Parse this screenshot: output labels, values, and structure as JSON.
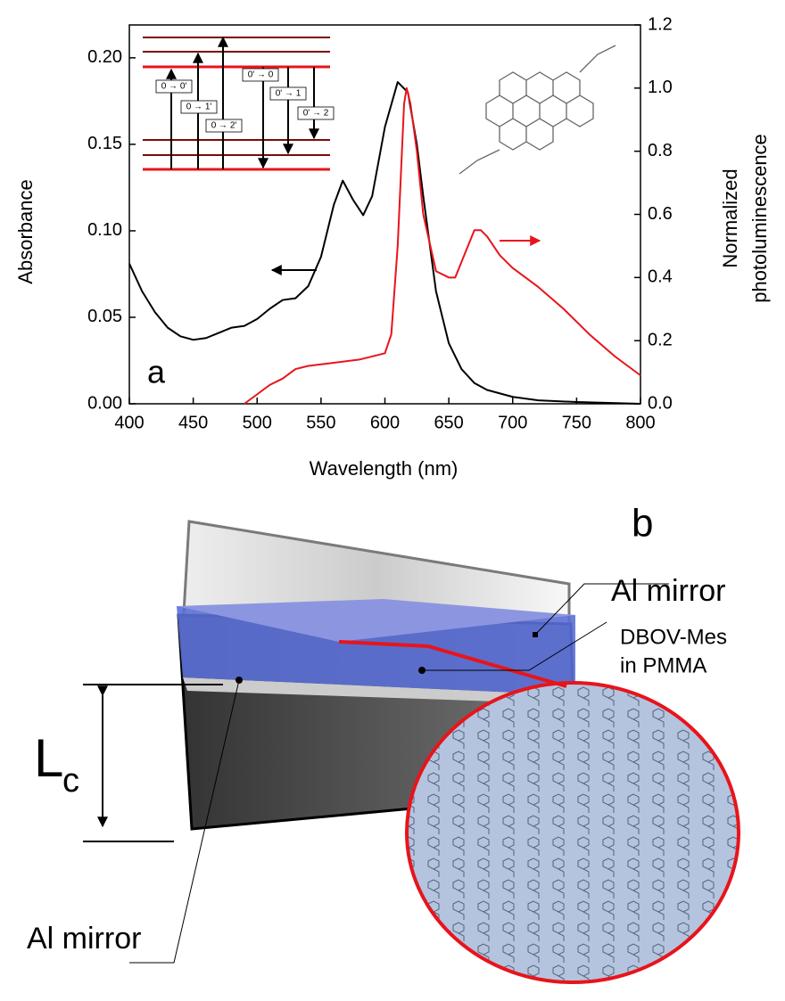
{
  "chart_data": {
    "type": "line",
    "panel_label": "a",
    "xlabel": "Wavelength (nm)",
    "ylabel": "Absorbance",
    "y2label": [
      "Normalized",
      "photoluminescence"
    ],
    "xlim": [
      400,
      800
    ],
    "xticks": [
      400,
      450,
      500,
      550,
      600,
      650,
      700,
      750,
      800
    ],
    "ylim": [
      0,
      0.219
    ],
    "yticks": [
      {
        "value": 0,
        "label": "0.00"
      },
      {
        "value": 0.05,
        "label": "0.05"
      },
      {
        "value": 0.1,
        "label": "0.10"
      },
      {
        "value": 0.15,
        "label": "0.15"
      },
      {
        "value": 0.2,
        "label": "0.20"
      }
    ],
    "y2lim": [
      0,
      1.2
    ],
    "y2ticks": [
      {
        "value": 0,
        "label": "0.0"
      },
      {
        "value": 0.2,
        "label": "0.2"
      },
      {
        "value": 0.4,
        "label": "0.4"
      },
      {
        "value": 0.6,
        "label": "0.6"
      },
      {
        "value": 0.8,
        "label": "0.8"
      },
      {
        "value": 1,
        "label": "1.0"
      },
      {
        "value": 1.2,
        "label": "1.2"
      }
    ],
    "series": [
      {
        "color": "#000000",
        "x": [
          400,
          410,
          420,
          430,
          440,
          450,
          460,
          470,
          480,
          490,
          500,
          510,
          520,
          530,
          540,
          550,
          560,
          567,
          575,
          583,
          590,
          600,
          610,
          618,
          625,
          630,
          640,
          650,
          660,
          670,
          680,
          700,
          720,
          750,
          800
        ],
        "values": [
          0.081,
          0.065,
          0.053,
          0.044,
          0.039,
          0.037,
          0.038,
          0.041,
          0.044,
          0.045,
          0.049,
          0.055,
          0.06,
          0.061,
          0.068,
          0.085,
          0.115,
          0.129,
          0.118,
          0.109,
          0.12,
          0.16,
          0.186,
          0.18,
          0.15,
          0.12,
          0.065,
          0.035,
          0.02,
          0.012,
          0.008,
          0.004,
          0.002,
          0.001,
          0
        ]
      },
      {
        "color": "#e8141b",
        "axis": "y2",
        "x": [
          490,
          500,
          510,
          520,
          530,
          540,
          560,
          580,
          600,
          605,
          610,
          615,
          617,
          620,
          625,
          630,
          640,
          650,
          655,
          660,
          670,
          675,
          680,
          690,
          700,
          720,
          740,
          760,
          780,
          800
        ],
        "values": [
          0,
          0.03,
          0.06,
          0.08,
          0.11,
          0.12,
          0.13,
          0.14,
          0.16,
          0.22,
          0.5,
          0.95,
          1,
          0.95,
          0.8,
          0.6,
          0.42,
          0.4,
          0.4,
          0.45,
          0.55,
          0.55,
          0.53,
          0.47,
          0.43,
          0.37,
          0.3,
          0.22,
          0.15,
          0.09
        ]
      }
    ],
    "transitions": [
      "0 → 0'",
      "0 → 1'",
      "0 → 2'",
      "0' → 0",
      "0' → 1",
      "0' → 2"
    ]
  },
  "diagram": {
    "label": "b",
    "top_mirror": "Al mirror",
    "film": [
      "DBOV-Mes",
      "in PMMA"
    ],
    "cavity_length": {
      "symbol": "L",
      "subscript": "c"
    },
    "bottom_mirror": "Al mirror"
  }
}
